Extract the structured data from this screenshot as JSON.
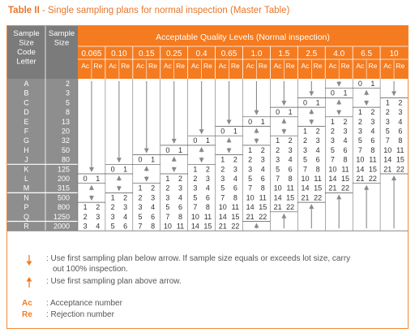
{
  "title": {
    "bold": "Table II",
    "rest": " - Single sampling plans for normal inspection (Master Table)"
  },
  "headers": {
    "code_letter": [
      "Sample",
      "Size",
      "Code",
      "Letter"
    ],
    "sample_size": [
      "Sample",
      "Size"
    ],
    "aql_title": "Acceptable Quality Levels (Normal inspection)",
    "ac": "Ac",
    "re": "Re"
  },
  "aql_levels": [
    "0.065",
    "0.10",
    "0.15",
    "0.25",
    "0.4",
    "0.65",
    "1.0",
    "1.5",
    "2.5",
    "4.0",
    "6.5",
    "10"
  ],
  "rows": [
    {
      "letter": "A",
      "size": "2",
      "cells": [
        "down",
        "down",
        "down",
        "down",
        "down",
        "down",
        "down",
        "down",
        "down",
        "down",
        [
          "0",
          "1"
        ],
        "down"
      ]
    },
    {
      "letter": "B",
      "size": "3",
      "cells": [
        "down",
        "down",
        "down",
        "down",
        "down",
        "down",
        "down",
        "down",
        "down",
        [
          "0",
          "1"
        ],
        "up",
        "down"
      ]
    },
    {
      "letter": "C",
      "size": "5",
      "cells": [
        "down",
        "down",
        "down",
        "down",
        "down",
        "down",
        "down",
        "down",
        [
          "0",
          "1"
        ],
        "up",
        "down",
        [
          "1",
          "2"
        ]
      ]
    },
    {
      "letter": "D",
      "size": "8",
      "cells": [
        "down",
        "down",
        "down",
        "down",
        "down",
        "down",
        "down",
        [
          "0",
          "1"
        ],
        "up",
        "down",
        [
          "1",
          "2"
        ],
        [
          "2",
          "3"
        ]
      ]
    },
    {
      "letter": "E",
      "size": "13",
      "cells": [
        "down",
        "down",
        "down",
        "down",
        "down",
        "down",
        [
          "0",
          "1"
        ],
        "up",
        "down",
        [
          "1",
          "2"
        ],
        [
          "2",
          "3"
        ],
        [
          "3",
          "4"
        ]
      ]
    },
    {
      "letter": "F",
      "size": "20",
      "cells": [
        "down",
        "down",
        "down",
        "down",
        "down",
        [
          "0",
          "1"
        ],
        "up",
        "down",
        [
          "1",
          "2"
        ],
        [
          "2",
          "3"
        ],
        [
          "3",
          "4"
        ],
        [
          "5",
          "6"
        ]
      ]
    },
    {
      "letter": "G",
      "size": "32",
      "cells": [
        "down",
        "down",
        "down",
        "down",
        [
          "0",
          "1"
        ],
        "up",
        "down",
        [
          "1",
          "2"
        ],
        [
          "2",
          "3"
        ],
        [
          "3",
          "4"
        ],
        [
          "5",
          "6"
        ],
        [
          "7",
          "8"
        ]
      ]
    },
    {
      "letter": "H",
      "size": "50",
      "cells": [
        "down",
        "down",
        "down",
        [
          "0",
          "1"
        ],
        "up",
        "down",
        [
          "1",
          "2"
        ],
        [
          "2",
          "3"
        ],
        [
          "3",
          "4"
        ],
        [
          "5",
          "6"
        ],
        [
          "7",
          "8"
        ],
        [
          "10",
          "11"
        ]
      ]
    },
    {
      "letter": "J",
      "size": "80",
      "cells": [
        "down",
        "down",
        [
          "0",
          "1"
        ],
        "up",
        "down",
        [
          "1",
          "2"
        ],
        [
          "2",
          "3"
        ],
        [
          "3",
          "4"
        ],
        [
          "5",
          "6"
        ],
        [
          "7",
          "8"
        ],
        [
          "10",
          "11"
        ],
        [
          "14",
          "15"
        ]
      ]
    },
    {
      "letter": "K",
      "size": "125",
      "cells": [
        "down",
        [
          "0",
          "1"
        ],
        "up",
        "down",
        [
          "1",
          "2"
        ],
        [
          "2",
          "3"
        ],
        [
          "3",
          "4"
        ],
        [
          "5",
          "6"
        ],
        [
          "7",
          "8"
        ],
        [
          "10",
          "11"
        ],
        [
          "14",
          "15"
        ],
        [
          "21",
          "22"
        ]
      ]
    },
    {
      "letter": "L",
      "size": "200",
      "cells": [
        [
          "0",
          "1"
        ],
        "up",
        "down",
        [
          "1",
          "2"
        ],
        [
          "2",
          "3"
        ],
        [
          "3",
          "4"
        ],
        [
          "5",
          "6"
        ],
        [
          "7",
          "8"
        ],
        [
          "10",
          "11"
        ],
        [
          "14",
          "15"
        ],
        [
          "21",
          "22"
        ],
        "up"
      ]
    },
    {
      "letter": "M",
      "size": "315",
      "cells": [
        "up",
        "down",
        [
          "1",
          "2"
        ],
        [
          "2",
          "3"
        ],
        [
          "3",
          "4"
        ],
        [
          "5",
          "6"
        ],
        [
          "7",
          "8"
        ],
        [
          "10",
          "11"
        ],
        [
          "14",
          "15"
        ],
        [
          "21",
          "22"
        ],
        "up",
        "up"
      ]
    },
    {
      "letter": "N",
      "size": "500",
      "cells": [
        "down",
        [
          "1",
          "2"
        ],
        [
          "2",
          "3"
        ],
        [
          "3",
          "4"
        ],
        [
          "5",
          "6"
        ],
        [
          "7",
          "8"
        ],
        [
          "10",
          "11"
        ],
        [
          "14",
          "15"
        ],
        [
          "21",
          "22"
        ],
        "up",
        "up",
        "up"
      ]
    },
    {
      "letter": "P",
      "size": "800",
      "cells": [
        [
          "1",
          "2"
        ],
        [
          "2",
          "3"
        ],
        [
          "3",
          "4"
        ],
        [
          "5",
          "6"
        ],
        [
          "7",
          "8"
        ],
        [
          "10",
          "11"
        ],
        [
          "14",
          "15"
        ],
        [
          "21",
          "22"
        ],
        "up",
        "up",
        "up",
        "up"
      ]
    },
    {
      "letter": "Q",
      "size": "1250",
      "cells": [
        [
          "2",
          "3"
        ],
        [
          "3",
          "4"
        ],
        [
          "5",
          "6"
        ],
        [
          "7",
          "8"
        ],
        [
          "10",
          "11"
        ],
        [
          "14",
          "15"
        ],
        [
          "21",
          "22"
        ],
        "up",
        "up",
        "up",
        "up",
        "up"
      ]
    },
    {
      "letter": "R",
      "size": "2000",
      "cells": [
        [
          "3",
          "4"
        ],
        [
          "5",
          "6"
        ],
        [
          "7",
          "8"
        ],
        [
          "10",
          "11"
        ],
        [
          "14",
          "15"
        ],
        [
          "21",
          "22"
        ],
        "up",
        "up",
        "up",
        "up",
        "up",
        "up"
      ]
    }
  ],
  "legend": {
    "down_text_1": ": Use first sampling plan below arrow. If sample size equals or exceeds lot size, carry",
    "down_text_2": "out 100% inspection.",
    "up_text": ": Use first sampling plan above arrow.",
    "ac_label": "Ac",
    "ac_text": ": Acceptance number",
    "re_label": "Re",
    "re_text": ": Rejection number"
  },
  "colors": {
    "orange": "#f47b20",
    "header_gray": "#7b7b7b",
    "letter_gray": "#8e8e8e",
    "title": "#e8762a",
    "arrow_gray": "#8a8a8a",
    "arrow_orange": "#f47b20"
  }
}
